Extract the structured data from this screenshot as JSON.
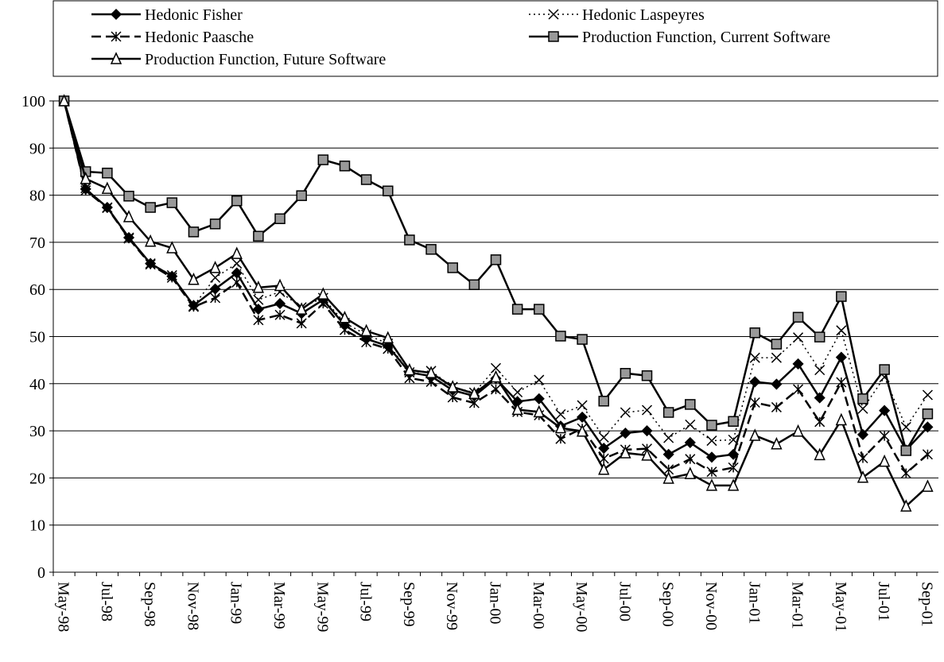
{
  "chart_data": {
    "type": "line",
    "categories": [
      "May-98",
      null,
      "Jul-98",
      null,
      "Sep-98",
      null,
      "Nov-98",
      null,
      "Jan-99",
      null,
      "Mar-99",
      null,
      "May-99",
      null,
      "Jul-99",
      null,
      "Sep-99",
      null,
      "Nov-99",
      null,
      "Jan-00",
      null,
      "Mar-00",
      null,
      "May-00",
      null,
      "Jul-00",
      null,
      "Sep-00",
      null,
      "Nov-00",
      null,
      "Jan-01",
      null,
      "Mar-01",
      null,
      "May-01",
      null,
      "Jul-01",
      null,
      "Sep-01"
    ],
    "ylim": [
      0,
      100
    ],
    "yticks": [
      0,
      10,
      20,
      30,
      40,
      50,
      60,
      70,
      80,
      90,
      100
    ],
    "grid": true,
    "series": [
      {
        "name": "Hedonic Fisher",
        "color": "#000000",
        "marker": "diamond",
        "dash": "solid",
        "values": [
          100,
          81.3,
          77.4,
          71,
          65.5,
          62.8,
          56.6,
          60.1,
          63.5,
          55.8,
          57,
          54.9,
          57.8,
          52.4,
          49.5,
          48,
          42.4,
          41.6,
          38.6,
          37.4,
          41.1,
          36.2,
          36.8,
          31,
          32.9,
          26.3,
          29.5,
          30,
          25,
          27.5,
          24.4,
          25,
          40.4,
          39.9,
          44.2,
          37,
          45.6,
          29.2,
          34.3,
          25.9,
          30.8
        ]
      },
      {
        "name": "Hedonic Laspeyres",
        "color": "#000000",
        "marker": "x",
        "dash": "dotted",
        "values": [
          100,
          81.5,
          77.4,
          71,
          65.5,
          63,
          56.5,
          62.5,
          65.5,
          57.8,
          59.5,
          56.2,
          58.2,
          52.9,
          50.4,
          48.5,
          42.4,
          42.7,
          39.3,
          38.1,
          43.3,
          38.2,
          40.8,
          33.5,
          35.4,
          28.6,
          33.9,
          34.4,
          28.5,
          31.3,
          27.9,
          28.1,
          45.5,
          45.5,
          49.8,
          42.9,
          51.3,
          34.7,
          41.4,
          30.8,
          37.6
        ]
      },
      {
        "name": "Hedonic Paasche",
        "color": "#000000",
        "marker": "star",
        "dash": "dashed",
        "values": [
          100,
          81,
          77.3,
          70.8,
          65.3,
          62.5,
          56.3,
          58.2,
          61.5,
          53.5,
          54.6,
          52.8,
          57,
          51.4,
          48.8,
          47.4,
          41.2,
          40.4,
          37.1,
          35.9,
          38.8,
          34,
          33.3,
          28.3,
          30.5,
          24.1,
          26,
          26.2,
          21.8,
          24,
          21.3,
          22.2,
          36,
          35,
          38.8,
          31.9,
          40.3,
          24.2,
          28.9,
          21,
          25
        ]
      },
      {
        "name": "Production Function, Current Software",
        "color": "#000000",
        "marker": "square",
        "dash": "solid",
        "values": [
          100,
          85,
          84.7,
          79.8,
          77.4,
          78.4,
          72.2,
          73.9,
          78.8,
          71.3,
          75,
          79.9,
          87.5,
          86.2,
          83.3,
          80.9,
          70.5,
          68.5,
          64.6,
          61,
          66.3,
          55.8,
          55.8,
          50.1,
          49.4,
          36.3,
          42.2,
          41.7,
          33.9,
          35.6,
          31.2,
          32,
          50.8,
          48.4,
          54.1,
          49.9,
          58.5,
          36.8,
          43,
          25.8,
          33.6
        ]
      },
      {
        "name": "Production Function, Future Software",
        "color": "#000000",
        "marker": "triangle",
        "dash": "solid",
        "values": [
          100,
          83.5,
          81.4,
          75.4,
          70.2,
          68.8,
          62.1,
          64.6,
          67.6,
          60.4,
          60.8,
          55.8,
          59,
          54,
          51.2,
          49.7,
          42.9,
          42.3,
          39.3,
          37.9,
          41.4,
          34.5,
          34,
          30.6,
          29.9,
          21.8,
          25.3,
          24.8,
          19.9,
          20.9,
          18.4,
          18.4,
          29,
          27.2,
          29.9,
          24.9,
          32.3,
          20.1,
          23.5,
          14,
          18.2
        ]
      }
    ]
  }
}
